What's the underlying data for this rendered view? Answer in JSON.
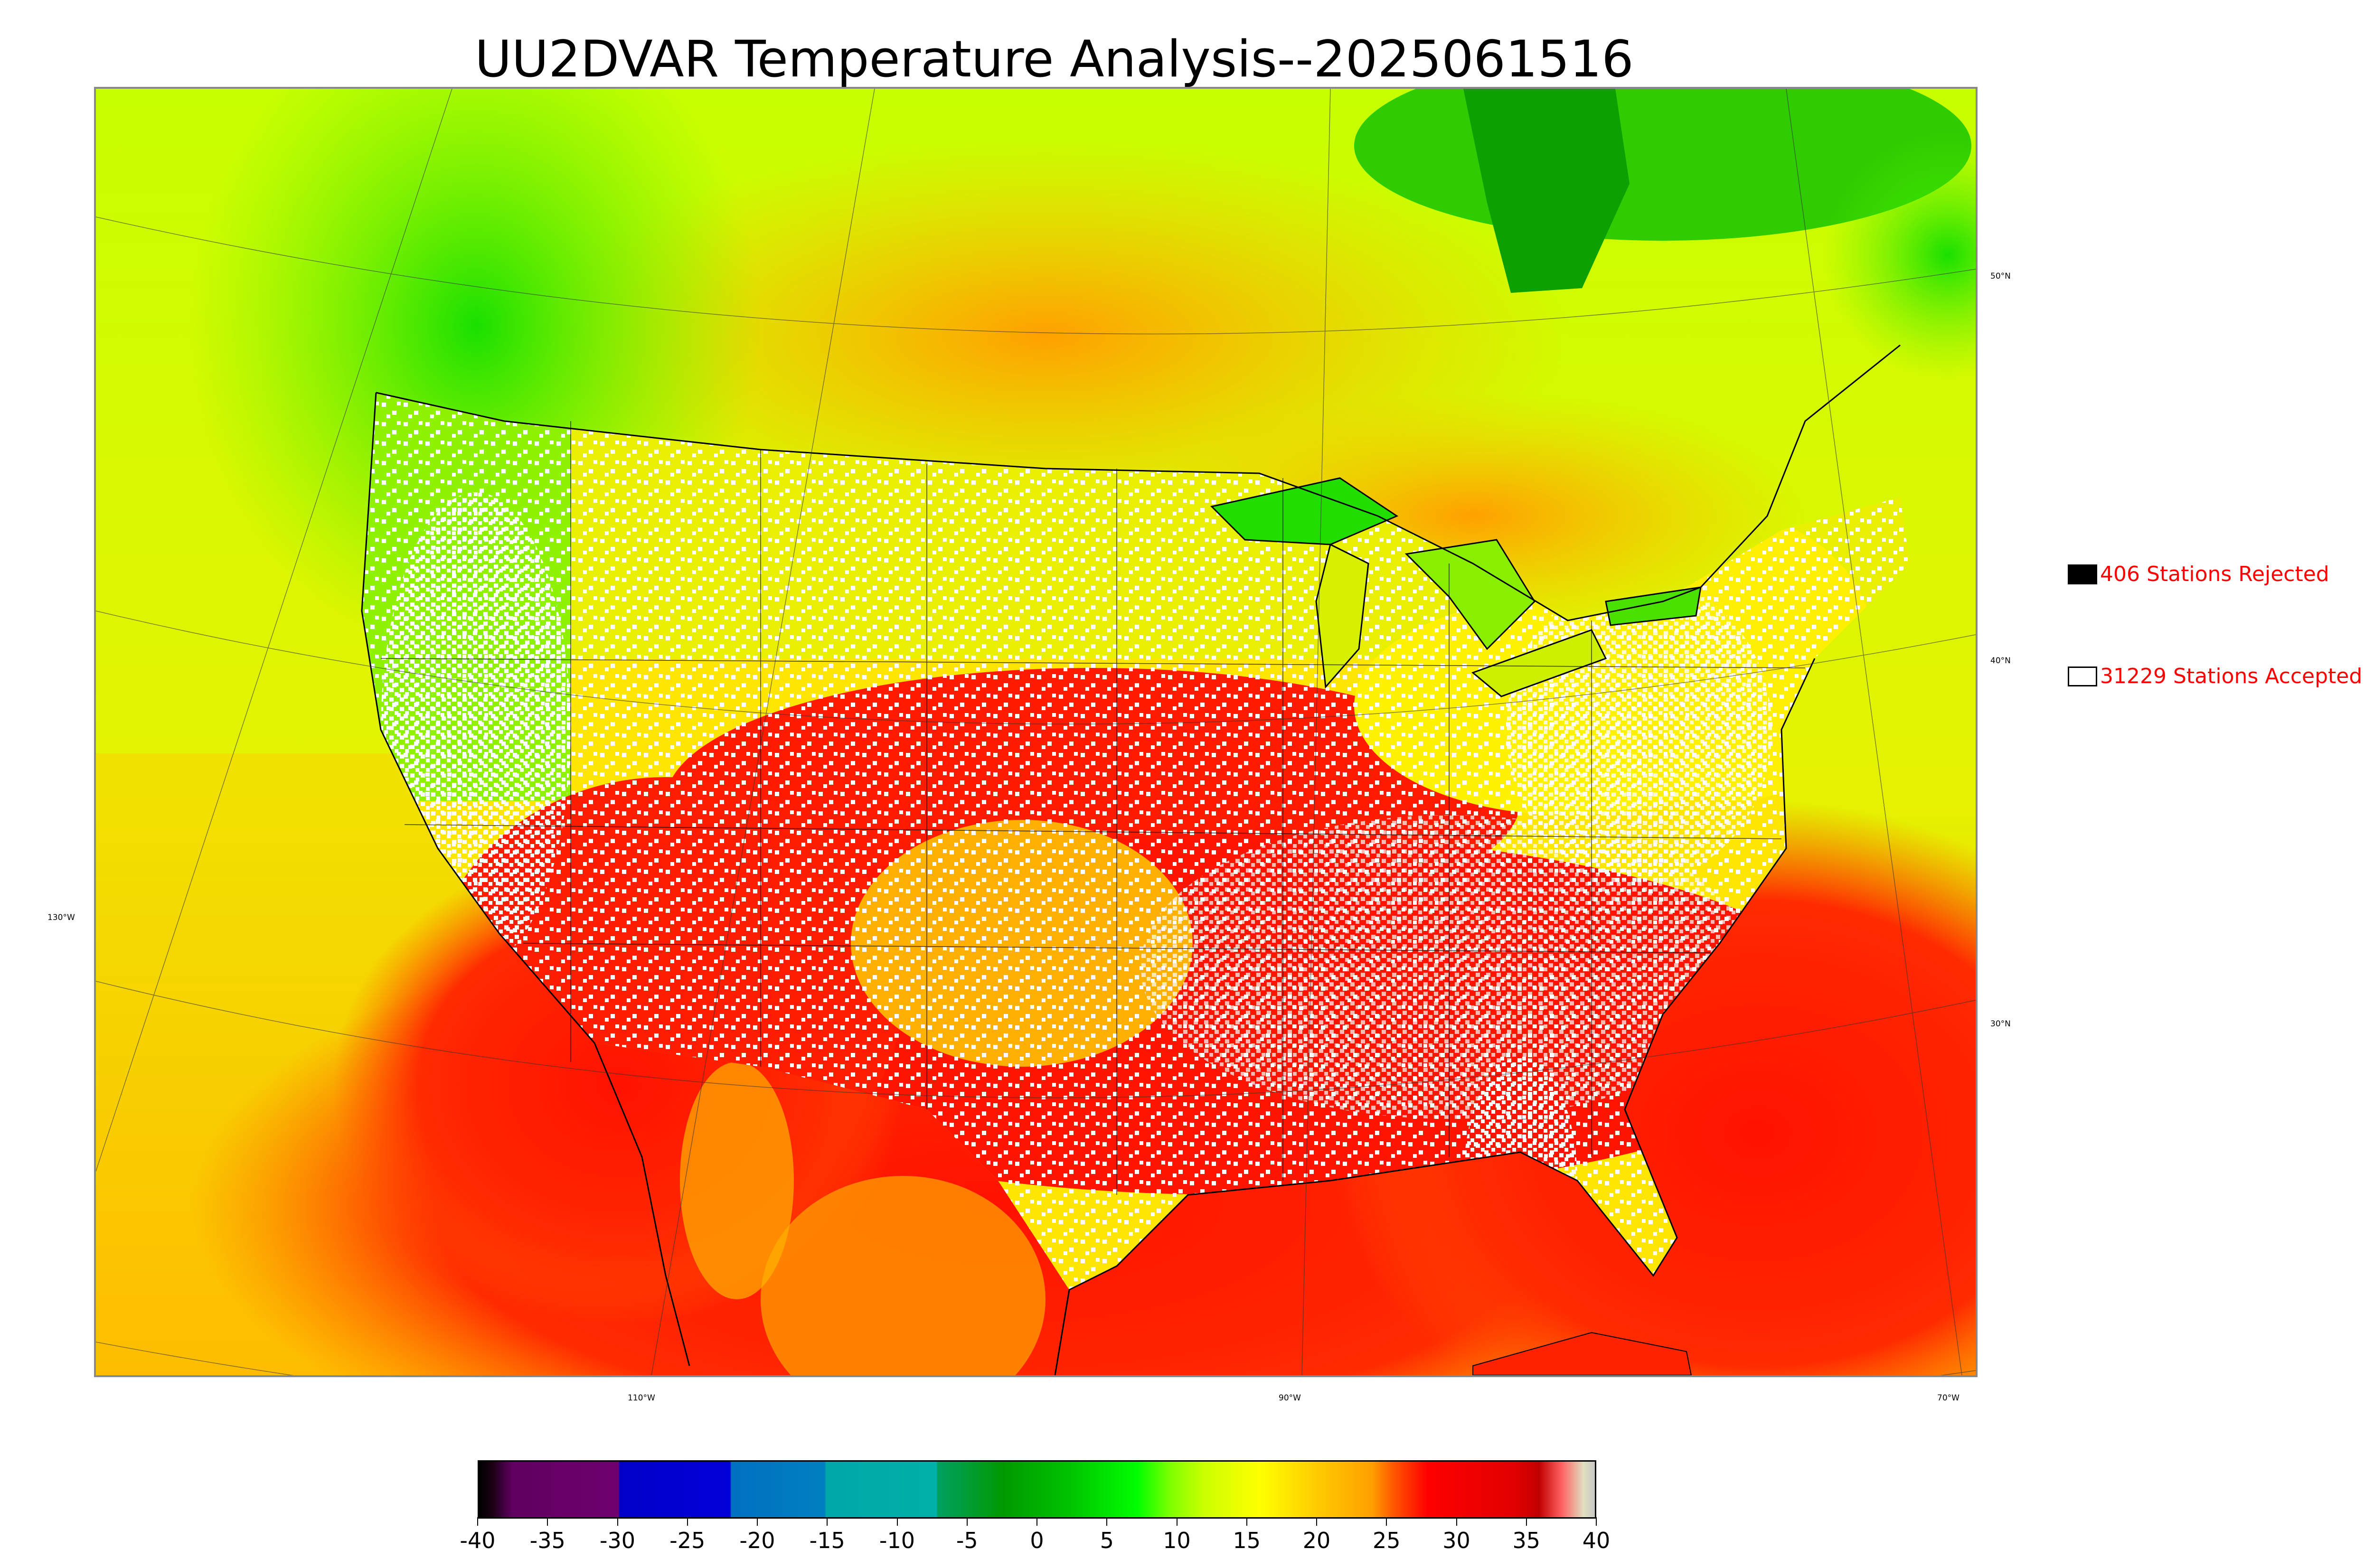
{
  "title": "UU2DVAR Temperature Analysis--2025061516",
  "legend": {
    "rejected_label": "406 Stations Rejected",
    "accepted_label": "31229 Stations Accepted",
    "rejected_color": "#000000",
    "accepted_color": "#ffffff",
    "text_color": "#ff0000"
  },
  "lat_labels": [
    "50°N",
    "40°N",
    "30°N"
  ],
  "lon_labels": [
    "130°W",
    "110°W",
    "90°W",
    "70°W"
  ],
  "colorbar": {
    "tick_labels": [
      "-40",
      "-35",
      "-30",
      "-25",
      "-20",
      "-15",
      "-10",
      "-5",
      "0",
      "5",
      "10",
      "15",
      "20",
      "25",
      "30",
      "35",
      "40"
    ],
    "min": -40,
    "max": 40
  }
}
